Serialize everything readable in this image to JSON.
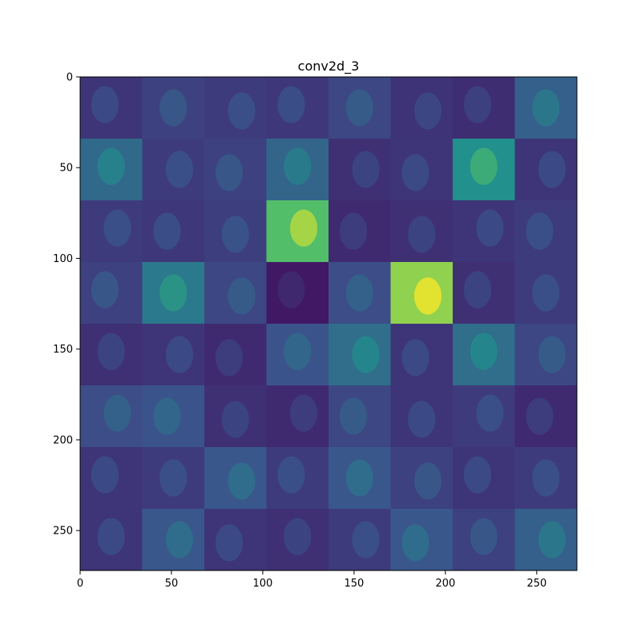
{
  "chart_data": {
    "type": "heatmap",
    "title": "conv2d_3",
    "xlabel": "",
    "ylabel": "",
    "xlim": [
      0,
      272
    ],
    "ylim": [
      272,
      0
    ],
    "xticks": [
      0,
      50,
      100,
      150,
      200,
      250
    ],
    "yticks": [
      0,
      50,
      100,
      150,
      200,
      250
    ],
    "grid": false,
    "colormap": "viridis",
    "tile_size": 34,
    "grid_shape": [
      8,
      8
    ],
    "tile_mean_activation": [
      [
        0.18,
        0.22,
        0.2,
        0.19,
        0.24,
        0.17,
        0.15,
        0.34
      ],
      [
        0.38,
        0.2,
        0.22,
        0.36,
        0.16,
        0.18,
        0.55,
        0.18
      ],
      [
        0.2,
        0.19,
        0.21,
        0.78,
        0.14,
        0.16,
        0.18,
        0.2
      ],
      [
        0.22,
        0.45,
        0.24,
        0.08,
        0.26,
        0.92,
        0.16,
        0.2
      ],
      [
        0.16,
        0.18,
        0.14,
        0.28,
        0.4,
        0.18,
        0.4,
        0.24
      ],
      [
        0.26,
        0.28,
        0.16,
        0.14,
        0.24,
        0.18,
        0.2,
        0.14
      ],
      [
        0.18,
        0.2,
        0.3,
        0.2,
        0.3,
        0.22,
        0.18,
        0.2
      ],
      [
        0.18,
        0.3,
        0.18,
        0.16,
        0.2,
        0.3,
        0.22,
        0.34
      ]
    ]
  }
}
